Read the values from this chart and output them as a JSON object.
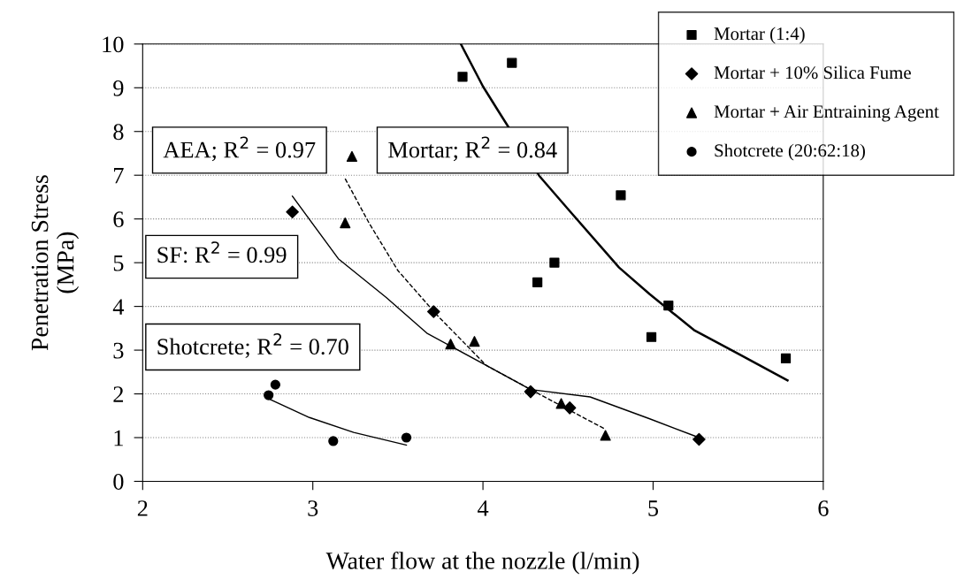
{
  "chart_data": {
    "type": "scatter",
    "xlabel": "Water flow at the nozzle (l/min)",
    "ylabel": "Penetration Stress\n(MPa)",
    "xlim": [
      2,
      6
    ],
    "xticks": [
      2,
      3,
      4,
      5,
      6
    ],
    "ylim": [
      0,
      10
    ],
    "yticks": [
      0,
      1,
      2,
      3,
      4,
      5,
      6,
      7,
      8,
      9,
      10
    ],
    "grid": "y",
    "legend": "top right",
    "annotations": [
      "AEA; R$^{2}$ = 0.97",
      "Mortar; R$^{2}$ = 0.84",
      "SF: R$^{2}$ = 0.99",
      "Shotcrete; R$^{2}$ = 0.70"
    ],
    "series": [
      {
        "name": "Mortar (1:4)",
        "color": "#000000",
        "marker": "square",
        "x": [
          3.88,
          4.17,
          4.81,
          4.42,
          4.32,
          5.09,
          4.99,
          5.78
        ],
        "values": [
          9.25,
          9.57,
          6.54,
          5.0,
          4.55,
          4.02,
          3.3,
          2.81
        ]
      },
      {
        "name": "Mortar + 10% Silica Fume",
        "color": "#000000",
        "marker": "diamond",
        "x": [
          2.88,
          3.71,
          4.28,
          4.51,
          5.27
        ],
        "values": [
          6.16,
          3.88,
          2.05,
          1.68,
          0.96
        ]
      },
      {
        "name": "Mortar + Air Entraining Agent",
        "color": "#000000",
        "marker": "triangle",
        "x": [
          3.23,
          3.19,
          3.81,
          3.95,
          4.46,
          4.72
        ],
        "values": [
          7.43,
          5.91,
          3.14,
          3.2,
          1.78,
          1.05
        ]
      },
      {
        "name": "Shotcrete (20:62:18)",
        "color": "#000000",
        "marker": "circle",
        "x": [
          2.74,
          2.78,
          3.12,
          3.55
        ],
        "values": [
          1.97,
          2.21,
          0.92,
          1.0
        ]
      },
      {
        "type": "line",
        "color": "#000000",
        "line_style": "solid",
        "x": [
          3.87,
          4.0,
          4.09,
          4.33,
          4.51,
          4.8,
          4.98,
          5.24,
          5.5,
          5.79
        ],
        "values": [
          10,
          9.03,
          8.47,
          6.99,
          6.18,
          4.89,
          4.28,
          3.46,
          2.92,
          2.31
        ]
      },
      {
        "type": "line",
        "color": "#000000",
        "line_style": "solid",
        "x": [
          2.88,
          3.15,
          3.43,
          3.67,
          4.02,
          4.28,
          4.63,
          4.98,
          5.27
        ],
        "values": [
          6.52,
          5.09,
          4.21,
          3.39,
          2.65,
          2.1,
          1.93,
          1.43,
          1.0
        ]
      },
      {
        "type": "line",
        "color": "#000000",
        "line_style": "dashed",
        "x": [
          3.19,
          3.33,
          3.5,
          3.73,
          4.02,
          4.28,
          4.72
        ],
        "values": [
          6.92,
          5.91,
          4.82,
          3.8,
          2.65,
          2.1,
          1.19
        ]
      },
      {
        "type": "line",
        "color": "#000000",
        "line_style": "solid",
        "x": [
          2.75,
          2.98,
          3.24,
          3.55
        ],
        "values": [
          1.87,
          1.46,
          1.12,
          0.83
        ]
      }
    ]
  }
}
